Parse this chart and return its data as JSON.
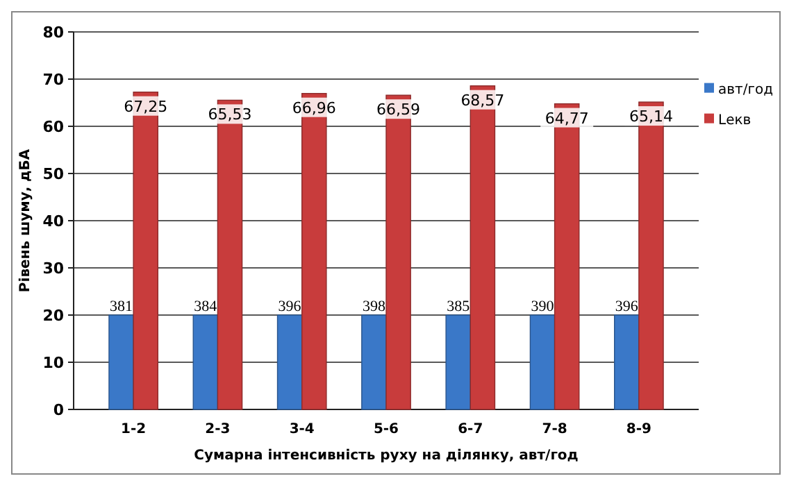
{
  "chart_data": {
    "type": "bar",
    "xlabel": "Сумарна інтенсивність  руху на ділянку, авт/год",
    "ylabel": "Рівень шуму, дБА",
    "categories": [
      "1-2",
      "2-3",
      "3-4",
      "5-6",
      "6-7",
      "7-8",
      "8-9"
    ],
    "series": [
      {
        "name": "авт/год",
        "color": "#3a78c8",
        "values": [
          20,
          20,
          20,
          20,
          20,
          20,
          20
        ]
      },
      {
        "name": "Lекв",
        "color": "#c83c3c",
        "values": [
          67.25,
          65.53,
          66.96,
          66.59,
          68.57,
          64.77,
          65.14
        ],
        "value_labels": [
          "67,25",
          "65,53",
          "66,96",
          "66,59",
          "68,57",
          "64,77",
          "65,14"
        ]
      }
    ],
    "annotations": [
      {
        "text": "381",
        "x": "1-2",
        "y": 20
      },
      {
        "text": "384",
        "x": "2-3",
        "y": 20
      },
      {
        "text": "396",
        "x": "3-4",
        "y": 20
      },
      {
        "text": "398",
        "x": "5-6",
        "y": 20
      },
      {
        "text": "385",
        "x": "6-7",
        "y": 20
      },
      {
        "text": "390",
        "x": "7-8",
        "y": 20
      },
      {
        "text": "396",
        "x": "8-9",
        "y": 20
      }
    ],
    "ylim": [
      0,
      80
    ],
    "yticks": [
      0,
      10,
      20,
      30,
      40,
      50,
      60,
      70,
      80
    ],
    "grid": "y",
    "legend": "right"
  }
}
